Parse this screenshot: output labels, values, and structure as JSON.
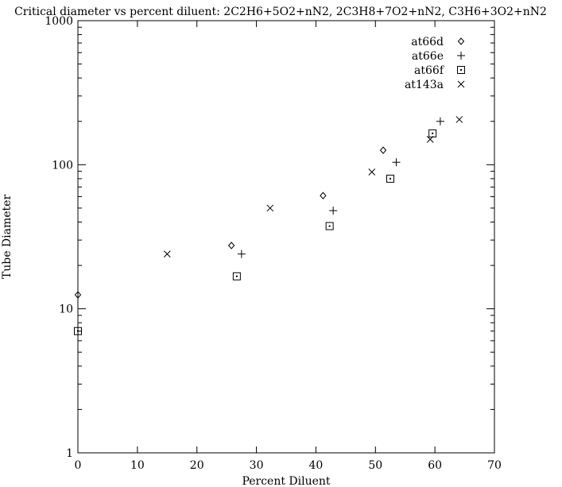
{
  "chart_data": {
    "type": "scatter",
    "title": "Critical diameter vs percent diluent: 2C2H6+5O2+nN2, 2C3H8+7O2+nN2, C3H6+3O2+nN2",
    "xlabel": "Percent Diluent",
    "ylabel": "Tube Diameter",
    "xlim": [
      0,
      70
    ],
    "ylim": [
      1,
      1000
    ],
    "yscale": "log",
    "grid": false,
    "legend_position": "top-right",
    "x_ticks": [
      0,
      10,
      20,
      30,
      40,
      50,
      60,
      70
    ],
    "x_tick_labels": [
      "0",
      "10",
      "20",
      "30",
      "40",
      "50",
      "60",
      "70"
    ],
    "y_ticks": [
      1,
      10,
      100,
      1000
    ],
    "y_tick_labels": [
      "1",
      "10",
      "100",
      "1000"
    ],
    "series": [
      {
        "name": "at66d",
        "marker": "diamond",
        "points": [
          [
            0,
            12.5
          ],
          [
            25.8,
            27.5
          ],
          [
            41.2,
            61
          ],
          [
            51.3,
            126
          ]
        ]
      },
      {
        "name": "at66e",
        "marker": "plus",
        "points": [
          [
            27.5,
            24
          ],
          [
            42.9,
            48
          ],
          [
            53.5,
            104
          ],
          [
            60.9,
            200
          ]
        ]
      },
      {
        "name": "at66f",
        "marker": "boxed-dot",
        "points": [
          [
            0,
            7
          ],
          [
            26.7,
            16.8
          ],
          [
            42.3,
            37.5
          ],
          [
            52.5,
            80
          ],
          [
            59.6,
            165
          ]
        ]
      },
      {
        "name": "at143a",
        "marker": "cross",
        "points": [
          [
            15,
            24
          ],
          [
            32.3,
            50
          ],
          [
            49.4,
            89
          ],
          [
            59.2,
            150
          ],
          [
            64.1,
            206
          ]
        ]
      }
    ]
  }
}
